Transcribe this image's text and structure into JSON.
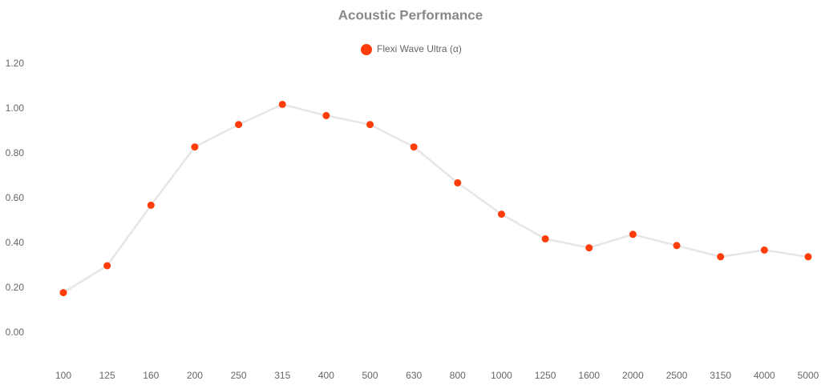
{
  "chart_data": {
    "type": "line",
    "title": "Acoustic Performance",
    "categories": [
      "100",
      "125",
      "160",
      "200",
      "250",
      "315",
      "400",
      "500",
      "630",
      "800",
      "1000",
      "1250",
      "1600",
      "2000",
      "2500",
      "3150",
      "4000",
      "5000"
    ],
    "series": [
      {
        "name": "Flexi Wave Ultra (α)",
        "color": "#ff3d0a",
        "line_color": "#e6e6e6",
        "values": [
          0.18,
          0.3,
          0.57,
          0.83,
          0.93,
          1.02,
          0.97,
          0.93,
          0.83,
          0.67,
          0.53,
          0.42,
          0.38,
          0.44,
          0.39,
          0.34,
          0.37,
          0.34
        ]
      }
    ],
    "ylim": [
      -0.1,
      1.2
    ],
    "yticks": [
      {
        "value": 0,
        "label": "0.00"
      },
      {
        "value": 0.2,
        "label": "0.20"
      },
      {
        "value": 0.4,
        "label": "0.40"
      },
      {
        "value": 0.6,
        "label": "0.60"
      },
      {
        "value": 0.8,
        "label": "0.80"
      },
      {
        "value": 1,
        "label": "1.00"
      },
      {
        "value": 1.2,
        "label": "1.20"
      }
    ],
    "grid": false,
    "legend": "top"
  }
}
